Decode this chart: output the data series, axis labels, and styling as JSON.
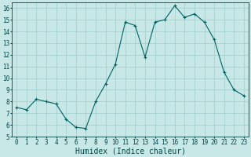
{
  "x": [
    0,
    1,
    2,
    3,
    4,
    5,
    6,
    7,
    8,
    9,
    10,
    11,
    12,
    13,
    14,
    15,
    16,
    17,
    18,
    19,
    20,
    21,
    22,
    23
  ],
  "y": [
    7.5,
    7.3,
    8.2,
    8.0,
    7.8,
    6.5,
    5.8,
    5.7,
    8.0,
    9.5,
    11.2,
    14.8,
    14.5,
    11.8,
    14.8,
    15.0,
    16.2,
    15.2,
    15.5,
    14.8,
    13.3,
    10.5,
    9.0,
    8.5
  ],
  "line_color": "#006060",
  "marker": "+",
  "marker_size": 3,
  "bg_color": "#c8e8e8",
  "grid_color": "#a0cccc",
  "xlabel": "Humidex (Indice chaleur)",
  "xlim": [
    -0.5,
    23.5
  ],
  "ylim": [
    5,
    16.5
  ],
  "yticks": [
    5,
    6,
    7,
    8,
    9,
    10,
    11,
    12,
    13,
    14,
    15,
    16
  ],
  "xticks": [
    0,
    1,
    2,
    3,
    4,
    5,
    6,
    7,
    8,
    9,
    10,
    11,
    12,
    13,
    14,
    15,
    16,
    17,
    18,
    19,
    20,
    21,
    22,
    23
  ],
  "font_color": "#004444",
  "font_size": 5.5,
  "label_fontsize": 7.0,
  "linewidth": 0.8,
  "markeredgewidth": 0.8
}
